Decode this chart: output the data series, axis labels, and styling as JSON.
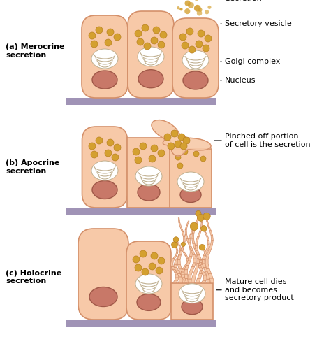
{
  "background_color": "#ffffff",
  "cell_fill": "#f7c9a8",
  "cell_fill_light": "#fce0c8",
  "cell_outline": "#d4906a",
  "nucleus_fill": "#c87868",
  "nucleus_outline": "#a05848",
  "vesicle_color": "#d4a030",
  "vesicle_outline": "#b88020",
  "golgi_fill": "#f0e8d8",
  "golgi_outline": "#c0b090",
  "base_color": "#9080aa",
  "secretion_dot_color": "#d4a030",
  "font_size_label": 8,
  "font_size_title": 8,
  "panel_a_label": "(a) Merocrine\nsecretion",
  "panel_b_label": "(b) Apocrine\nsecretion",
  "panel_c_label": "(c) Holocrine\nsecretion",
  "ann_a": [
    "Secretion",
    "Secretory vesicle",
    "Golgi complex",
    "Nucleus"
  ],
  "ann_b": [
    "Pinched off portion\nof cell is the secretion"
  ],
  "ann_c": [
    "Mature cell dies\nand becomes\nsecretory product"
  ]
}
